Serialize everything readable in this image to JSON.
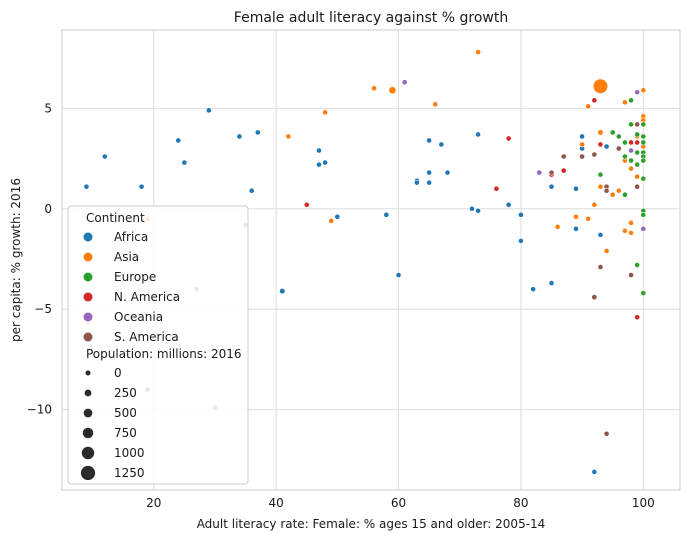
{
  "chart_data": {
    "type": "scatter",
    "title": "Female adult literacy against % growth",
    "xlabel": "Adult literacy rate: Female: % ages 15 and older: 2005-14",
    "ylabel": "per capita: % growth: 2016",
    "xlim": [
      5,
      106
    ],
    "ylim": [
      -14,
      8.9
    ],
    "xticks": [
      20,
      40,
      60,
      80,
      100
    ],
    "yticks": [
      -10,
      -5,
      0,
      5
    ],
    "grid": true,
    "legend": {
      "placement": "lower-left",
      "hue_title": "Continent",
      "size_title": "Population: millions: 2016",
      "size_values": [
        0,
        250,
        500,
        750,
        1000,
        1250
      ]
    },
    "colors": {
      "Africa": "#1f77b4",
      "Asia": "#ff7f0e",
      "Europe": "#2ca02c",
      "N. America": "#d62728",
      "Oceania": "#9467bd",
      "S. America": "#8c564b"
    },
    "series": [
      {
        "name": "Africa",
        "points": [
          [
            9,
            1.1,
            30
          ],
          [
            12,
            2.6,
            30
          ],
          [
            18,
            1.1,
            30
          ],
          [
            19,
            -9.0,
            30
          ],
          [
            24,
            3.4,
            30
          ],
          [
            25,
            2.3,
            30
          ],
          [
            27,
            -4.0,
            30
          ],
          [
            29,
            4.9,
            40
          ],
          [
            30,
            -9.9,
            30
          ],
          [
            34,
            3.6,
            30
          ],
          [
            35,
            -0.8,
            30
          ],
          [
            36,
            0.9,
            30
          ],
          [
            37,
            3.8,
            30
          ],
          [
            41,
            -4.1,
            80
          ],
          [
            47,
            2.9,
            30
          ],
          [
            47,
            2.2,
            30
          ],
          [
            48,
            2.3,
            30
          ],
          [
            50,
            -0.4,
            30
          ],
          [
            58,
            -0.3,
            30
          ],
          [
            60,
            -3.3,
            30
          ],
          [
            63,
            1.4,
            30
          ],
          [
            63,
            1.3,
            30
          ],
          [
            65,
            3.4,
            30
          ],
          [
            65,
            1.8,
            30
          ],
          [
            65,
            1.3,
            30
          ],
          [
            67,
            3.2,
            30
          ],
          [
            68,
            1.8,
            30
          ],
          [
            72,
            0.0,
            30
          ],
          [
            73,
            3.7,
            30
          ],
          [
            73,
            -0.1,
            30
          ],
          [
            78,
            0.2,
            30
          ],
          [
            80,
            -0.3,
            30
          ],
          [
            80,
            -1.6,
            30
          ],
          [
            82,
            -4.0,
            30
          ],
          [
            85,
            1.1,
            30
          ],
          [
            85,
            -3.7,
            30
          ],
          [
            89,
            1.0,
            30
          ],
          [
            89,
            -1.0,
            30
          ],
          [
            90,
            3.6,
            30
          ],
          [
            90,
            3.0,
            30
          ],
          [
            92,
            -13.1,
            30
          ],
          [
            93,
            -1.3,
            30
          ],
          [
            94,
            3.1,
            30
          ],
          [
            98,
            3.3,
            30
          ]
        ]
      },
      {
        "name": "Asia",
        "points": [
          [
            19,
            -0.5,
            30
          ],
          [
            42,
            3.6,
            40
          ],
          [
            48,
            4.8,
            30
          ],
          [
            49,
            -0.6,
            30
          ],
          [
            56,
            6.0,
            50
          ],
          [
            59,
            5.9,
            320
          ],
          [
            66,
            5.2,
            30
          ],
          [
            73,
            7.8,
            40
          ],
          [
            86,
            -0.9,
            30
          ],
          [
            89,
            -0.4,
            30
          ],
          [
            90,
            3.2,
            30
          ],
          [
            91,
            5.1,
            30
          ],
          [
            91,
            -0.5,
            30
          ],
          [
            92,
            0.2,
            30
          ],
          [
            93,
            6.1,
            1300
          ],
          [
            93,
            3.8,
            80
          ],
          [
            93,
            1.1,
            30
          ],
          [
            94,
            -2.1,
            30
          ],
          [
            95,
            0.7,
            30
          ],
          [
            96,
            0.9,
            30
          ],
          [
            97,
            5.3,
            40
          ],
          [
            97,
            2.4,
            30
          ],
          [
            97,
            -1.1,
            30
          ],
          [
            98,
            2.0,
            30
          ],
          [
            98,
            -0.7,
            30
          ],
          [
            98,
            -1.2,
            30
          ],
          [
            99,
            3.6,
            30
          ],
          [
            100,
            4.6,
            40
          ],
          [
            100,
            4.4,
            40
          ],
          [
            100,
            4.2,
            30
          ],
          [
            100,
            3.1,
            30
          ],
          [
            100,
            -0.3,
            30
          ],
          [
            100,
            -0.3,
            30
          ],
          [
            100,
            5.9,
            30
          ],
          [
            99,
            1.6,
            30
          ],
          [
            98,
            3.3,
            30
          ]
        ]
      },
      {
        "name": "Europe",
        "points": [
          [
            93,
            1.7,
            30
          ],
          [
            95,
            3.8,
            30
          ],
          [
            96,
            3.6,
            30
          ],
          [
            97,
            3.3,
            30
          ],
          [
            97,
            2.6,
            30
          ],
          [
            97,
            0.7,
            30
          ],
          [
            98,
            5.4,
            30
          ],
          [
            98,
            4.2,
            30
          ],
          [
            98,
            2.4,
            30
          ],
          [
            99,
            4.2,
            30
          ],
          [
            99,
            3.7,
            30
          ],
          [
            99,
            2.8,
            30
          ],
          [
            99,
            2.2,
            30
          ],
          [
            99,
            -2.8,
            30
          ],
          [
            100,
            4.2,
            30
          ],
          [
            100,
            3.6,
            30
          ],
          [
            100,
            3.3,
            30
          ],
          [
            100,
            2.8,
            30
          ],
          [
            100,
            2.6,
            30
          ],
          [
            100,
            2.4,
            30
          ],
          [
            100,
            1.5,
            30
          ],
          [
            100,
            -0.1,
            30
          ],
          [
            100,
            -0.3,
            30
          ],
          [
            100,
            -4.2,
            30
          ]
        ]
      },
      {
        "name": "N. America",
        "points": [
          [
            45,
            0.2,
            30
          ],
          [
            76,
            1.0,
            30
          ],
          [
            78,
            3.5,
            30
          ],
          [
            85,
            1.7,
            30
          ],
          [
            87,
            1.9,
            30
          ],
          [
            92,
            5.4,
            30
          ],
          [
            93,
            3.2,
            30
          ],
          [
            94,
            1.0,
            30
          ],
          [
            98,
            3.3,
            30
          ],
          [
            99,
            3.3,
            30
          ],
          [
            99,
            -5.4,
            30
          ]
        ]
      },
      {
        "name": "Oceania",
        "points": [
          [
            61,
            6.3,
            30
          ],
          [
            83,
            1.8,
            30
          ],
          [
            99,
            5.8,
            30
          ],
          [
            98,
            2.9,
            30
          ],
          [
            100,
            -1.0,
            30
          ]
        ]
      },
      {
        "name": "S. America",
        "points": [
          [
            85,
            1.8,
            30
          ],
          [
            87,
            2.6,
            30
          ],
          [
            90,
            2.6,
            40
          ],
          [
            92,
            2.7,
            30
          ],
          [
            92,
            -4.4,
            60
          ],
          [
            93,
            -2.9,
            30
          ],
          [
            94,
            1.1,
            30
          ],
          [
            94,
            0.9,
            30
          ],
          [
            94,
            -11.2,
            30
          ],
          [
            96,
            3.0,
            30
          ],
          [
            98,
            -3.3,
            30
          ],
          [
            99,
            1.1,
            30
          ],
          [
            99,
            4.2,
            30
          ]
        ]
      }
    ]
  }
}
